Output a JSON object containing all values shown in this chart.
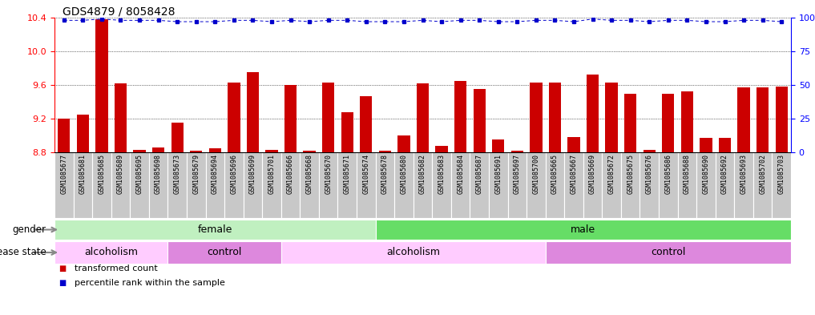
{
  "title": "GDS4879 / 8058428",
  "samples": [
    "GSM1085677",
    "GSM1085681",
    "GSM1085685",
    "GSM1085689",
    "GSM1085695",
    "GSM1085698",
    "GSM1085673",
    "GSM1085679",
    "GSM1085694",
    "GSM1085696",
    "GSM1085699",
    "GSM1085701",
    "GSM1085666",
    "GSM1085668",
    "GSM1085670",
    "GSM1085671",
    "GSM1085674",
    "GSM1085678",
    "GSM1085680",
    "GSM1085682",
    "GSM1085683",
    "GSM1085684",
    "GSM1085687",
    "GSM1085691",
    "GSM1085697",
    "GSM1085700",
    "GSM1085665",
    "GSM1085667",
    "GSM1085669",
    "GSM1085672",
    "GSM1085675",
    "GSM1085676",
    "GSM1085686",
    "GSM1085688",
    "GSM1085690",
    "GSM1085692",
    "GSM1085693",
    "GSM1085702",
    "GSM1085703"
  ],
  "bar_values": [
    9.2,
    9.25,
    10.38,
    9.62,
    8.83,
    8.86,
    9.15,
    8.82,
    8.85,
    9.63,
    9.75,
    8.83,
    9.6,
    8.82,
    9.63,
    9.28,
    9.47,
    8.82,
    9.0,
    9.62,
    8.88,
    9.65,
    9.55,
    8.95,
    8.82,
    9.63,
    9.63,
    8.98,
    9.72,
    9.63,
    9.5,
    8.83,
    9.5,
    9.52,
    8.97,
    8.97,
    9.57,
    9.57,
    9.58
  ],
  "percentile_values": [
    98,
    98,
    99,
    98,
    98,
    98,
    97,
    97,
    97,
    98,
    98,
    97,
    98,
    97,
    98,
    98,
    97,
    97,
    97,
    98,
    97,
    98,
    98,
    97,
    97,
    98,
    98,
    97,
    99,
    98,
    98,
    97,
    98,
    98,
    97,
    97,
    98,
    98,
    97
  ],
  "bar_color": "#cc0000",
  "percentile_color": "#0000cc",
  "ylim_left": [
    8.8,
    10.4
  ],
  "ylim_right": [
    0,
    100
  ],
  "yticks_left": [
    8.8,
    9.2,
    9.6,
    10.0,
    10.4
  ],
  "yticks_right": [
    0,
    25,
    50,
    75,
    100
  ],
  "gender_groups": [
    {
      "label": "female",
      "start": 0,
      "end": 17,
      "color": "#c0f0c0"
    },
    {
      "label": "male",
      "start": 17,
      "end": 39,
      "color": "#66dd66"
    }
  ],
  "disease_groups": [
    {
      "label": "alcoholism",
      "start": 0,
      "end": 6,
      "color": "#ffccff"
    },
    {
      "label": "control",
      "start": 6,
      "end": 12,
      "color": "#dd88dd"
    },
    {
      "label": "alcoholism",
      "start": 12,
      "end": 26,
      "color": "#ffccff"
    },
    {
      "label": "control",
      "start": 26,
      "end": 39,
      "color": "#dd88dd"
    }
  ],
  "background_color": "#ffffff",
  "label_bg_color": "#c8c8c8",
  "label_border_color": "#ffffff",
  "legend_items": [
    {
      "label": "transformed count",
      "color": "#cc0000"
    },
    {
      "label": "percentile rank within the sample",
      "color": "#0000cc"
    }
  ]
}
